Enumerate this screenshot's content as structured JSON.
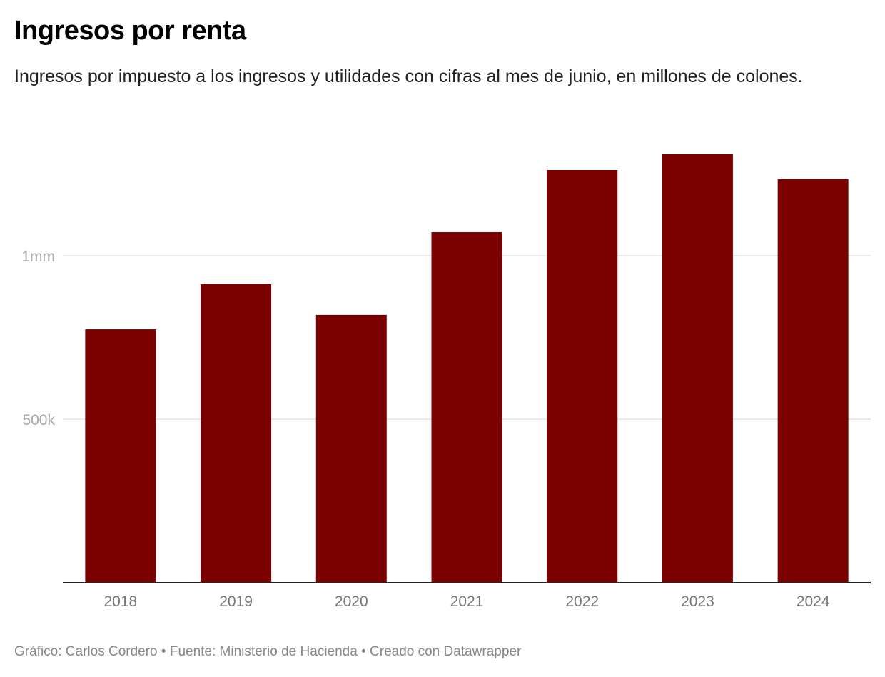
{
  "chart_data": {
    "type": "bar",
    "title": "Ingresos por renta",
    "subtitle": "Ingresos por impuesto a los ingresos y utilidades con cifras al mes de junio, en millones de colones.",
    "categories": [
      "2018",
      "2019",
      "2020",
      "2021",
      "2022",
      "2023",
      "2024"
    ],
    "values": [
      775000,
      913000,
      819000,
      1072000,
      1262000,
      1310000,
      1234000
    ],
    "xlabel": "",
    "ylabel": "",
    "ylim": [
      0,
      1000000
    ],
    "yticks": [
      {
        "value": 500000,
        "label": "500k"
      },
      {
        "value": 1000000,
        "label": "1mm"
      }
    ],
    "grid": true,
    "bar_color": "#7b0000",
    "footer": "Gráfico: Carlos Cordero • Fuente: Ministerio de Hacienda • Creado con Datawrapper"
  }
}
